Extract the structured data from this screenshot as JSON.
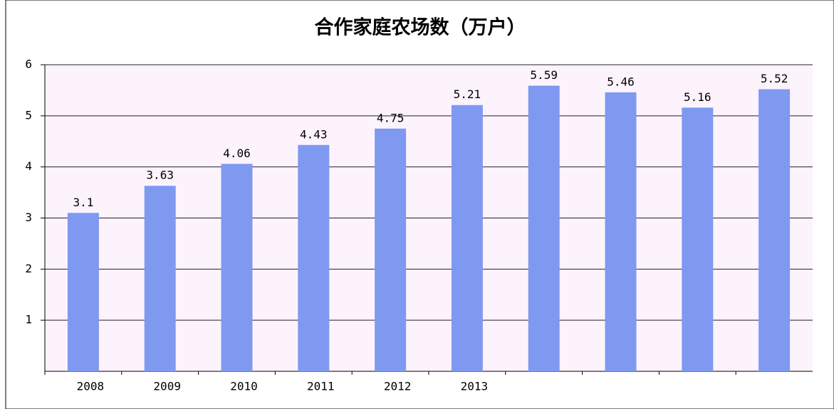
{
  "chart_data": {
    "type": "bar",
    "title": "合作家庭农场数（万户）",
    "categories": [
      "2008",
      "2009",
      "2010",
      "2011",
      "2012",
      "2013",
      null,
      null,
      null,
      null
    ],
    "values": [
      3.1,
      3.63,
      4.06,
      4.43,
      4.75,
      5.21,
      5.59,
      5.46,
      5.16,
      5.52
    ],
    "color": "#7f99f0",
    "ylim": [
      0,
      6
    ],
    "yticks": [
      1,
      2,
      3,
      4,
      5,
      6
    ],
    "grid": true
  }
}
